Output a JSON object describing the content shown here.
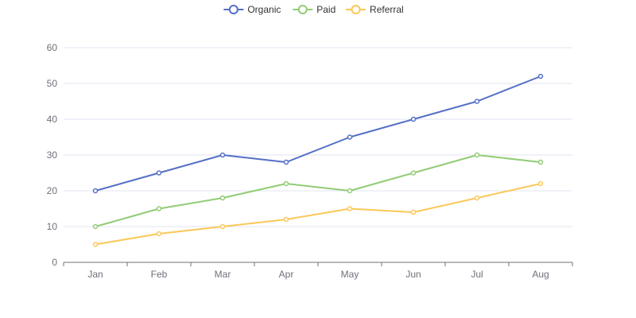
{
  "chart_data": {
    "type": "line",
    "title": "",
    "xlabel": "",
    "ylabel": "",
    "categories": [
      "Jan",
      "Feb",
      "Mar",
      "Apr",
      "May",
      "Jun",
      "Jul",
      "Aug"
    ],
    "ylim": [
      0,
      60
    ],
    "yticks": [
      "0",
      "10",
      "20",
      "30",
      "40",
      "50",
      "60"
    ],
    "grid": true,
    "legend_position": "top-center",
    "series": [
      {
        "name": "Organic",
        "color": "#5470c6",
        "values": [
          20,
          25,
          30,
          28,
          35,
          40,
          45,
          52
        ]
      },
      {
        "name": "Paid",
        "color": "#91cc75",
        "values": [
          10,
          15,
          18,
          22,
          20,
          25,
          30,
          28
        ]
      },
      {
        "name": "Referral",
        "color": "#fac858",
        "values": [
          5,
          8,
          10,
          12,
          15,
          14,
          18,
          22
        ]
      }
    ]
  }
}
